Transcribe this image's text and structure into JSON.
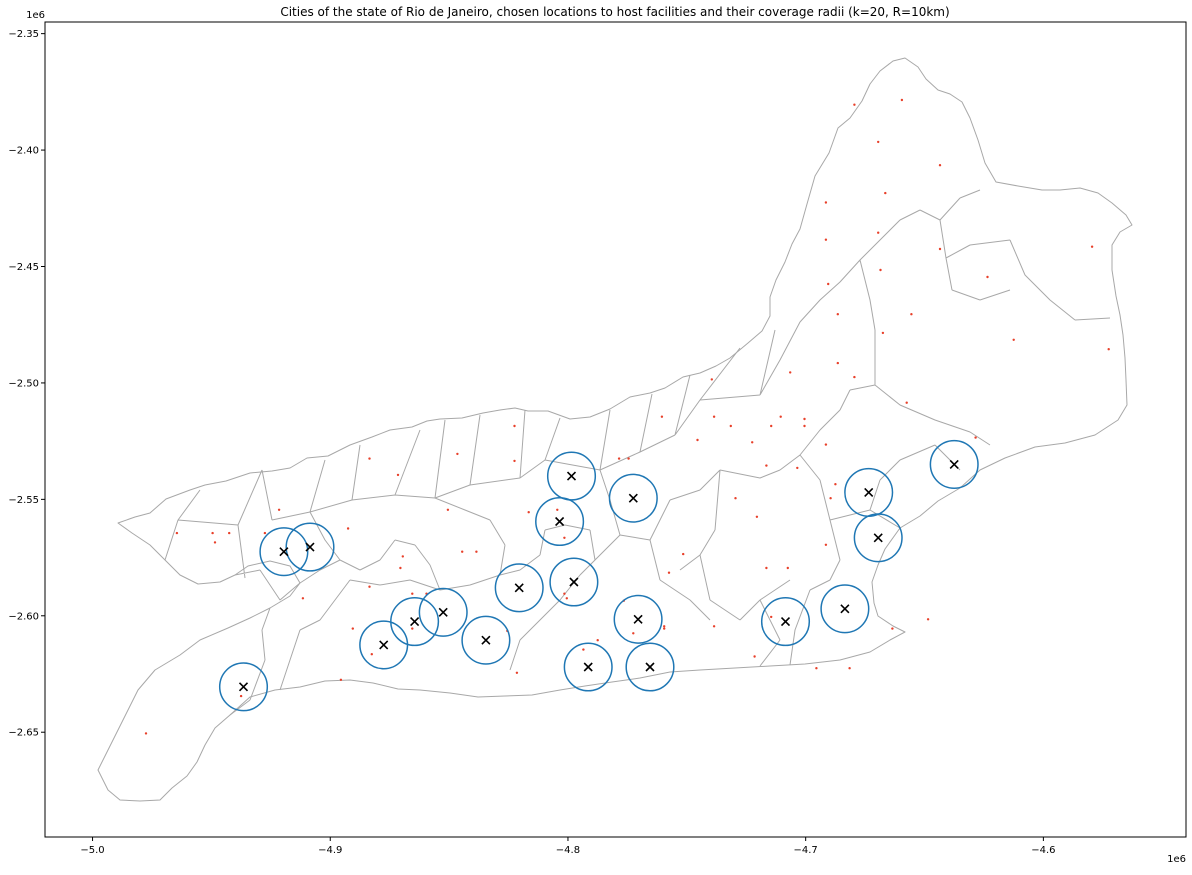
{
  "chart_data": {
    "type": "scatter",
    "title": "Cities of the state of Rio de Janeiro, chosen locations to host facilities and their coverage radii (k=20, R=10km)",
    "xlabel": "",
    "ylabel": "",
    "x_offset_label": "1e6",
    "y_offset_label": "1e6",
    "xlim": [
      -5.02,
      -4.54
    ],
    "ylim": [
      -2.695,
      -2.345
    ],
    "x_ticks": [
      -5.0,
      -4.9,
      -4.8,
      -4.7,
      -4.6
    ],
    "x_tick_labels": [
      "−5.0",
      "−4.9",
      "−4.8",
      "−4.7",
      "−4.6"
    ],
    "y_ticks": [
      -2.35,
      -2.4,
      -2.45,
      -2.5,
      -2.55,
      -2.6,
      -2.65
    ],
    "y_tick_labels": [
      "−2.35",
      "−2.40",
      "−2.45",
      "−2.50",
      "−2.55",
      "−2.60",
      "−2.65"
    ],
    "grid": false,
    "radius_km": 10,
    "colors": {
      "boundary": "#a8a8a8",
      "city": "#e8402a",
      "facility": "#000000",
      "coverage": "#1f77b4"
    },
    "facilities": {
      "x": [
        -4.9195,
        -4.9085,
        -4.8775,
        -4.8645,
        -4.8525,
        -4.8345,
        -4.8205,
        -4.7975,
        -4.8035,
        -4.7985,
        -4.7725,
        -4.7705,
        -4.7915,
        -4.7655,
        -4.7085,
        -4.6835,
        -4.6735,
        -4.6695,
        -4.6375,
        -4.9365
      ],
      "y": [
        -2.5725,
        -2.5705,
        -2.6125,
        -2.6025,
        -2.5985,
        -2.6105,
        -2.588,
        -2.5855,
        -2.5595,
        -2.54,
        -2.5495,
        -2.6015,
        -2.622,
        -2.622,
        -2.6025,
        -2.597,
        -2.547,
        -2.5665,
        -2.535,
        -2.6305
      ]
    },
    "cities": {
      "x": [
        -4.6795,
        -4.6595,
        -4.6695,
        -4.6435,
        -4.6665,
        -4.6915,
        -4.6915,
        -4.6695,
        -4.6685,
        -4.6435,
        -4.6235,
        -4.6905,
        -4.6865,
        -4.6555,
        -4.6125,
        -4.5795,
        -4.5725,
        -4.6675,
        -4.6865,
        -4.6795,
        -4.7065,
        -4.7395,
        -4.7605,
        -4.7785,
        -4.7455,
        -4.7315,
        -4.7145,
        -4.7105,
        -4.7005,
        -4.7035,
        -4.7165,
        -4.6915,
        -4.6875,
        -4.7295,
        -4.6285,
        -4.6575,
        -4.6915,
        -4.7075,
        -4.7575,
        -4.7765,
        -4.8015,
        -4.8225,
        -4.8465,
        -4.8715,
        -4.8925,
        -4.9215,
        -4.9425,
        -4.9275,
        -4.9495,
        -4.9645,
        -4.9485,
        -4.8835,
        -4.8695,
        -4.8445,
        -4.8165,
        -4.8045,
        -4.7745,
        -4.8835,
        -4.8655,
        -4.8595,
        -4.8385,
        -4.8005,
        -4.7935,
        -4.7595,
        -4.7515,
        -4.7385,
        -4.7215,
        -4.6815,
        -4.6635,
        -4.8905,
        -4.8955,
        -4.9375,
        -4.9775,
        -4.8255,
        -4.8225,
        -4.7385,
        -4.7595,
        -4.7725,
        -4.7165,
        -4.7005,
        -4.7225,
        -4.8505,
        -4.8705,
        -4.8015,
        -4.7875,
        -4.8825,
        -4.7145,
        -4.8655,
        -4.8215,
        -4.6955,
        -4.6485,
        -4.7205,
        -4.6895,
        -4.9115
      ],
      "y": [
        -2.3805,
        -2.3785,
        -2.3965,
        -2.4065,
        -2.4185,
        -2.4225,
        -2.4385,
        -2.4355,
        -2.4515,
        -2.4425,
        -2.4545,
        -2.4575,
        -2.4705,
        -2.4705,
        -2.4815,
        -2.4415,
        -2.4855,
        -2.4785,
        -2.4915,
        -2.4975,
        -2.4955,
        -2.4985,
        -2.5145,
        -2.5325,
        -2.5245,
        -2.5185,
        -2.5185,
        -2.5145,
        -2.5155,
        -2.5365,
        -2.5355,
        -2.5265,
        -2.5435,
        -2.5495,
        -2.5235,
        -2.5085,
        -2.5695,
        -2.5795,
        -2.5815,
        -2.5935,
        -2.5665,
        -2.5335,
        -2.5305,
        -2.5395,
        -2.5625,
        -2.5545,
        -2.5645,
        -2.5645,
        -2.5645,
        -2.5645,
        -2.5685,
        -2.5875,
        -2.5745,
        -2.5725,
        -2.5555,
        -2.5545,
        -2.5325,
        -2.5325,
        -2.5905,
        -2.5905,
        -2.5725,
        -2.5925,
        -2.6145,
        -2.6055,
        -2.5735,
        -2.6045,
        -2.6175,
        -2.6225,
        -2.6055,
        -2.6055,
        -2.6275,
        -2.6345,
        -2.6505,
        -2.6065,
        -2.5185,
        -2.5145,
        -2.6045,
        -2.6075,
        -2.5795,
        -2.5185,
        -2.5255,
        -2.5545,
        -2.5795,
        -2.5905,
        -2.6105,
        -2.6165,
        -2.6005,
        -2.6055,
        -2.6245,
        -2.6225,
        -2.6015,
        -2.5575,
        -2.5495,
        -2.5925
      ]
    }
  }
}
